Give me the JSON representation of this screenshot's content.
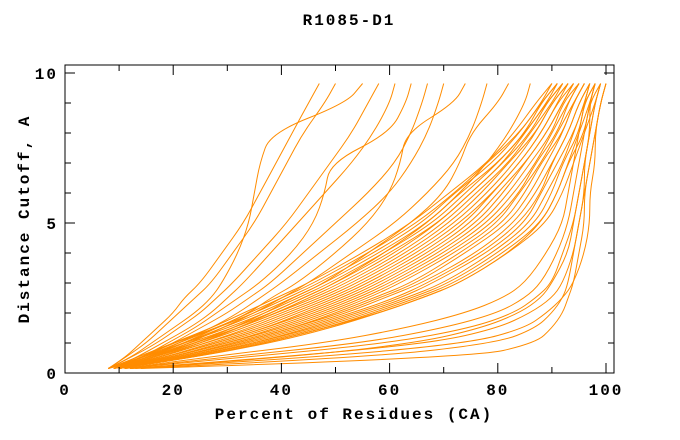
{
  "chart_data": {
    "type": "line",
    "title": "R1085-D1",
    "xlabel": "Percent of Residues (CA)",
    "ylabel": "Distance Cutoff, A",
    "xlim": [
      0,
      100
    ],
    "ylim": [
      0,
      10
    ],
    "grid": false,
    "legend": false,
    "line_color": "#ff8c00",
    "axis_color": "#000000",
    "x_axis": {
      "major": [
        20,
        40,
        60,
        80,
        100
      ],
      "minor": [
        10,
        30,
        50,
        70,
        90
      ],
      "labels": [
        {
          "v": 0,
          "text": "0"
        },
        {
          "v": 20,
          "text": "20"
        },
        {
          "v": 40,
          "text": "40"
        },
        {
          "v": 60,
          "text": "60"
        },
        {
          "v": 80,
          "text": "80"
        },
        {
          "v": 100,
          "text": "100"
        }
      ]
    },
    "y_axis": {
      "major": [
        5,
        10
      ],
      "minor": [
        1,
        2,
        3,
        4,
        6,
        7,
        8,
        9
      ],
      "labels": [
        {
          "v": 0,
          "text": "0"
        },
        {
          "v": 5,
          "text": "5"
        },
        {
          "v": 10,
          "text": "10"
        }
      ]
    },
    "y_levels": [
      0.15,
      0.5,
      1,
      1.5,
      2,
      2.5,
      3,
      4,
      5,
      6,
      7,
      8,
      9,
      9.65
    ],
    "series": [
      {
        "x": [
          8,
          13,
          20,
          27,
          33,
          39,
          45,
          55,
          64,
          71,
          78,
          83,
          87,
          90
        ]
      },
      {
        "x": [
          8,
          14,
          20,
          28,
          34,
          40,
          46,
          56,
          65,
          72,
          78,
          84,
          88,
          91
        ]
      },
      {
        "x": [
          9,
          14,
          21,
          28,
          35,
          41,
          47,
          57,
          66,
          72,
          79,
          84,
          88,
          90
        ]
      },
      {
        "x": [
          8,
          14,
          22,
          29,
          36,
          42,
          48,
          58,
          67,
          73,
          80,
          85,
          88,
          91
        ]
      },
      {
        "x": [
          9,
          15,
          22,
          30,
          37,
          43,
          49,
          59,
          68,
          74,
          80,
          85,
          89,
          91
        ]
      },
      {
        "x": [
          9,
          15,
          23,
          31,
          38,
          44,
          50,
          60,
          69,
          75,
          81,
          85,
          89,
          92
        ]
      },
      {
        "x": [
          8,
          15,
          24,
          32,
          39,
          45,
          51,
          61,
          69,
          75,
          81,
          86,
          89,
          92
        ]
      },
      {
        "x": [
          9,
          16,
          24,
          32,
          39,
          46,
          52,
          62,
          70,
          76,
          82,
          86,
          90,
          92
        ]
      },
      {
        "x": [
          9,
          16,
          25,
          33,
          40,
          47,
          53,
          63,
          71,
          77,
          82,
          87,
          90,
          93
        ]
      },
      {
        "x": [
          10,
          17,
          26,
          34,
          41,
          48,
          54,
          64,
          72,
          78,
          83,
          87,
          90,
          93
        ]
      },
      {
        "x": [
          9,
          17,
          26,
          35,
          42,
          49,
          55,
          65,
          73,
          79,
          84,
          88,
          91,
          93
        ]
      },
      {
        "x": [
          10,
          18,
          27,
          36,
          43,
          50,
          56,
          66,
          74,
          79,
          84,
          88,
          91,
          94
        ]
      },
      {
        "x": [
          9,
          18,
          28,
          37,
          44,
          51,
          57,
          67,
          75,
          80,
          85,
          89,
          92,
          94
        ]
      },
      {
        "x": [
          10,
          18,
          28,
          37,
          45,
          52,
          58,
          68,
          76,
          81,
          85,
          89,
          92,
          94
        ]
      },
      {
        "x": [
          10,
          19,
          29,
          38,
          46,
          53,
          59,
          69,
          77,
          82,
          86,
          90,
          92,
          95
        ]
      },
      {
        "x": [
          9,
          19,
          30,
          39,
          47,
          54,
          60,
          70,
          78,
          83,
          87,
          90,
          93,
          95
        ]
      },
      {
        "x": [
          10,
          19,
          30,
          40,
          48,
          55,
          61,
          71,
          79,
          84,
          87,
          91,
          93,
          95
        ]
      },
      {
        "x": [
          10,
          20,
          31,
          41,
          49,
          56,
          62,
          72,
          80,
          84,
          88,
          91,
          94,
          96
        ]
      },
      {
        "x": [
          10,
          20,
          32,
          42,
          50,
          57,
          64,
          73,
          81,
          85,
          88,
          92,
          94,
          96
        ]
      },
      {
        "x": [
          9,
          20,
          32,
          42,
          51,
          58,
          65,
          74,
          82,
          86,
          89,
          92,
          94,
          96
        ]
      },
      {
        "x": [
          10,
          21,
          33,
          43,
          52,
          59,
          66,
          76,
          83,
          87,
          90,
          93,
          95,
          97
        ]
      },
      {
        "x": [
          10,
          21,
          34,
          44,
          53,
          61,
          67,
          77,
          84,
          88,
          90,
          93,
          95,
          97
        ]
      },
      {
        "x": [
          10,
          22,
          35,
          45,
          54,
          62,
          68,
          78,
          85,
          88,
          91,
          94,
          96,
          97
        ]
      },
      {
        "x": [
          10,
          22,
          35,
          46,
          55,
          63,
          70,
          79,
          86,
          89,
          92,
          94,
          96,
          98
        ]
      },
      {
        "x": [
          10,
          22,
          36,
          47,
          56,
          64,
          71,
          80,
          87,
          90,
          92,
          95,
          96,
          98
        ]
      },
      {
        "x": [
          10,
          23,
          37,
          48,
          57,
          65,
          72,
          81,
          88,
          91,
          93,
          95,
          97,
          98
        ]
      },
      {
        "x": [
          10,
          23,
          37,
          48,
          58,
          66,
          73,
          82,
          88,
          91,
          93,
          96,
          97,
          99
        ]
      },
      {
        "x": [
          10,
          23,
          38,
          49,
          58,
          66,
          73,
          82,
          89,
          92,
          94,
          96,
          98,
          99
        ]
      },
      {
        "x": [
          8,
          11,
          14,
          17,
          20,
          22,
          25,
          29,
          33,
          36,
          39,
          42,
          45,
          47
        ]
      },
      {
        "x": [
          8,
          11,
          15,
          18,
          21,
          24,
          27,
          31,
          35,
          38,
          41,
          44,
          48,
          50
        ]
      },
      {
        "x": [
          8,
          12,
          16,
          20,
          24,
          27,
          29,
          32,
          34,
          35,
          36,
          38,
          52,
          55
        ]
      },
      {
        "x": [
          8,
          12,
          17,
          21,
          25,
          28,
          31,
          36,
          41,
          45,
          49,
          53,
          56,
          58
        ]
      },
      {
        "x": [
          9,
          13,
          18,
          23,
          27,
          30,
          33,
          38,
          43,
          48,
          53,
          57,
          60,
          61
        ]
      },
      {
        "x": [
          9,
          14,
          19,
          24,
          28,
          32,
          36,
          42,
          46,
          48,
          49,
          60,
          63,
          64
        ]
      },
      {
        "x": [
          9,
          14,
          20,
          25,
          30,
          34,
          38,
          44,
          50,
          56,
          61,
          64,
          66,
          67
        ]
      },
      {
        "x": [
          9,
          15,
          21,
          27,
          32,
          36,
          40,
          47,
          54,
          60,
          64,
          67,
          69,
          70
        ]
      },
      {
        "x": [
          9,
          15,
          22,
          28,
          34,
          38,
          43,
          50,
          56,
          60,
          62,
          63,
          72,
          74
        ]
      },
      {
        "x": [
          9,
          16,
          23,
          29,
          35,
          40,
          45,
          53,
          61,
          67,
          72,
          75,
          77,
          78
        ]
      },
      {
        "x": [
          10,
          16,
          24,
          31,
          37,
          42,
          48,
          56,
          64,
          70,
          73,
          75,
          80,
          82
        ]
      },
      {
        "x": [
          10,
          17,
          25,
          32,
          38,
          44,
          50,
          59,
          67,
          73,
          78,
          82,
          85,
          86
        ]
      },
      {
        "x": [
          11,
          28,
          55,
          70,
          80,
          85,
          88,
          91,
          93,
          94,
          95,
          96,
          97,
          98
        ]
      },
      {
        "x": [
          11,
          32,
          60,
          75,
          83,
          87,
          90,
          92,
          94,
          95,
          96,
          97,
          98,
          99
        ]
      },
      {
        "x": [
          12,
          38,
          68,
          80,
          86,
          90,
          92,
          94,
          95,
          96,
          97,
          98,
          99,
          100
        ]
      },
      {
        "x": [
          12,
          45,
          75,
          85,
          89,
          92,
          94,
          96,
          97,
          97,
          98,
          98,
          99,
          100
        ]
      },
      {
        "x": [
          11,
          25,
          48,
          63,
          74,
          81,
          85,
          89,
          92,
          93,
          94,
          95,
          96,
          97
        ]
      },
      {
        "x": [
          14,
          75,
          87,
          90,
          92,
          93,
          94,
          95,
          96,
          96,
          97,
          98,
          99,
          100
        ]
      },
      {
        "x": [
          13,
          55,
          80,
          87,
          90,
          92,
          93,
          94,
          95,
          96,
          96,
          97,
          98,
          99
        ]
      },
      {
        "x": [
          12,
          40,
          65,
          77,
          84,
          88,
          90,
          93,
          94,
          95,
          96,
          97,
          97,
          98
        ]
      }
    ]
  }
}
